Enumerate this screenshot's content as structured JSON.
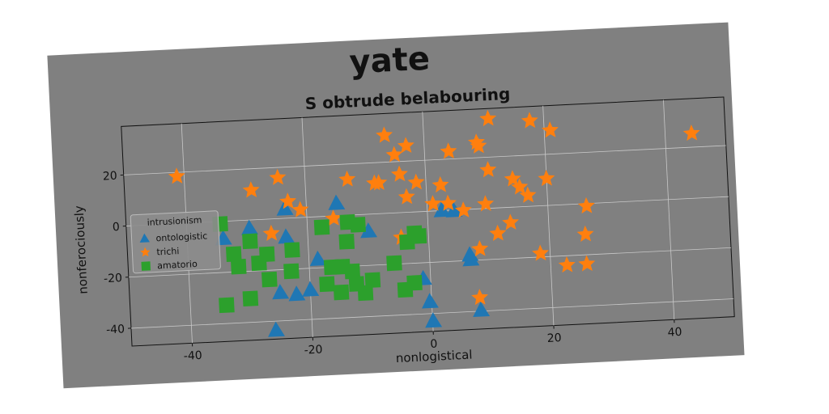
{
  "chart_data": {
    "type": "scatter",
    "title": "yate",
    "subtitle": "S obtrude belabouring",
    "xlabel": "nonlogistical",
    "ylabel": "nonferociously",
    "xlim": [
      -50,
      50
    ],
    "ylim": [
      -47,
      39
    ],
    "xticks": [
      -40,
      -20,
      0,
      20,
      40
    ],
    "yticks": [
      -40,
      -20,
      0,
      20
    ],
    "grid": true,
    "legend_title": "intrusionism",
    "legend_loc": "center left",
    "series": [
      {
        "name": "ontologistic",
        "color": "#1f77b4",
        "marker": "triangle",
        "x": [
          -15,
          -23.6,
          -29.6,
          -34,
          -23.6,
          -18.5,
          -25,
          -22.3,
          -20,
          -26,
          -9.9,
          -1.2,
          0.1,
          -0.3,
          2.4,
          4.4,
          6.7,
          6.8,
          8.1
        ],
        "y": [
          4.8,
          3.6,
          -3.3,
          -6.8,
          -7.4,
          -16.7,
          -29,
          -30,
          -28.5,
          -43.6,
          -6.7,
          -26.3,
          -43,
          -35.4,
          0,
          -0.3,
          -17.9,
          -19.7,
          -39.7
        ]
      },
      {
        "name": "trichi",
        "color": "#ff7f0e",
        "marker": "star",
        "x": [
          -41.2,
          -29,
          -24.5,
          -23,
          -21,
          -26,
          -13,
          -15.6,
          -8.5,
          -7.8,
          -6.5,
          -5,
          -4.3,
          -3,
          -3.3,
          -1.6,
          -4.5,
          2.4,
          3.5,
          1,
          4,
          6,
          8.7,
          9,
          10.8,
          10.4,
          9.7,
          8.4,
          8,
          11.5,
          13.7,
          14.4,
          15.5,
          16.8,
          17.7,
          20,
          21,
          18.4,
          22.7,
          26,
          26,
          26.4,
          44.4
        ],
        "y": [
          18.4,
          11.6,
          16,
          6.5,
          3,
          -5.7,
          14,
          -1,
          12,
          12,
          30.5,
          22.7,
          15,
          26,
          6,
          11.5,
          -9.7,
          10,
          2.7,
          2.8,
          23,
          -0.3,
          26,
          24.5,
          35,
          15,
          1.75,
          -15.7,
          -34.7,
          -10,
          -6,
          11,
          7.7,
          4.3,
          33.4,
          10.5,
          29.3,
          -18.6,
          -23.7,
          -23.6,
          -12,
          -1,
          25.4
        ]
      },
      {
        "name": "amatorio",
        "color": "#2ca02c",
        "marker": "square",
        "x": [
          -34,
          -30,
          -34.4,
          -32.4,
          -31.7,
          -29.6,
          -28.3,
          -26.7,
          -26.9,
          -22.7,
          -23,
          -17.6,
          -17.2,
          -16.3,
          -13.6,
          -13.3,
          -11.6,
          -14.5,
          -14.9,
          -12.3,
          -9.6,
          -10.9,
          -3.6,
          -2.3,
          -1.6,
          -5.9,
          -4.3,
          -2.7,
          -12.9
        ],
        "y": [
          -32.8,
          -30.7,
          -1,
          -13,
          -18,
          -8.3,
          -17,
          -23.6,
          -13.7,
          -12.5,
          -20.8,
          -4.2,
          -26.5,
          -20,
          -10.3,
          -2.7,
          -3.9,
          -20,
          -30,
          -27,
          -25.8,
          -30.7,
          -11.6,
          -8.3,
          -9.5,
          -19.6,
          -30.2,
          -27.7,
          -22
        ]
      }
    ]
  }
}
